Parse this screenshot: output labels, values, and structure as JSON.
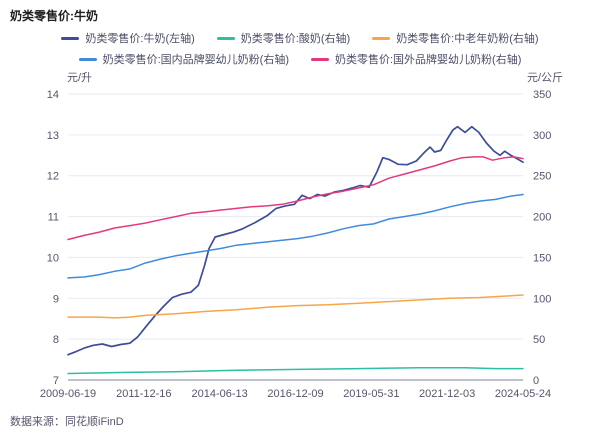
{
  "header": {
    "title": "奶类零售价:牛奶"
  },
  "footer": {
    "source": "数据来源：同花顺iFinD"
  },
  "colors": {
    "background": "#ffffff",
    "grid": "#e9eaf2",
    "axis_line": "#a9abbd",
    "tick_text": "#55566a",
    "legend_text": "#4b4d66",
    "title_text": "#1f1f1f"
  },
  "legend_rows": [
    [
      0,
      1,
      2
    ],
    [
      3,
      4
    ]
  ],
  "chart_data": {
    "type": "line",
    "title": "奶类零售价:牛奶",
    "grid": "horizontal-only",
    "legend_position": "top-center",
    "x_axis": {
      "kind": "date-decimal-year",
      "range": [
        2009.47,
        2024.4
      ],
      "tick_labels": [
        "2009-06-19",
        "2011-12-16",
        "2014-06-13",
        "2016-12-09",
        "2019-05-31",
        "2021-12-03",
        "2024-05-24"
      ]
    },
    "left_axis": {
      "unit": "元/升",
      "range": [
        7,
        14
      ],
      "ticks": [
        14,
        13,
        12,
        11,
        10,
        9,
        8,
        7
      ]
    },
    "right_axis": {
      "unit": "元/公斤",
      "range": [
        0,
        350
      ],
      "ticks": [
        350,
        300,
        250,
        200,
        150,
        100,
        50,
        0
      ]
    },
    "series": [
      {
        "key": "milk",
        "name": "奶类零售价:牛奶(左轴)",
        "axis": "left",
        "unit": "元/升",
        "color": "#3d4d9a",
        "points": [
          [
            2009.47,
            7.62
          ],
          [
            2009.75,
            7.7
          ],
          [
            2010.0,
            7.78
          ],
          [
            2010.3,
            7.85
          ],
          [
            2010.6,
            7.88
          ],
          [
            2010.9,
            7.82
          ],
          [
            2011.2,
            7.87
          ],
          [
            2011.5,
            7.9
          ],
          [
            2011.75,
            8.05
          ],
          [
            2012.0,
            8.28
          ],
          [
            2012.3,
            8.55
          ],
          [
            2012.6,
            8.8
          ],
          [
            2012.9,
            9.02
          ],
          [
            2013.2,
            9.1
          ],
          [
            2013.5,
            9.15
          ],
          [
            2013.75,
            9.32
          ],
          [
            2013.95,
            9.8
          ],
          [
            2014.1,
            10.22
          ],
          [
            2014.3,
            10.5
          ],
          [
            2014.6,
            10.56
          ],
          [
            2014.9,
            10.62
          ],
          [
            2015.2,
            10.7
          ],
          [
            2015.6,
            10.85
          ],
          [
            2016.0,
            11.02
          ],
          [
            2016.3,
            11.2
          ],
          [
            2016.6,
            11.26
          ],
          [
            2016.9,
            11.3
          ],
          [
            2017.15,
            11.52
          ],
          [
            2017.4,
            11.44
          ],
          [
            2017.65,
            11.54
          ],
          [
            2017.9,
            11.5
          ],
          [
            2018.2,
            11.6
          ],
          [
            2018.5,
            11.64
          ],
          [
            2018.8,
            11.7
          ],
          [
            2019.05,
            11.76
          ],
          [
            2019.35,
            11.72
          ],
          [
            2019.6,
            12.08
          ],
          [
            2019.8,
            12.44
          ],
          [
            2020.0,
            12.4
          ],
          [
            2020.3,
            12.28
          ],
          [
            2020.6,
            12.27
          ],
          [
            2020.9,
            12.36
          ],
          [
            2021.15,
            12.56
          ],
          [
            2021.35,
            12.7
          ],
          [
            2021.5,
            12.58
          ],
          [
            2021.7,
            12.62
          ],
          [
            2021.9,
            12.88
          ],
          [
            2022.1,
            13.12
          ],
          [
            2022.25,
            13.2
          ],
          [
            2022.5,
            13.06
          ],
          [
            2022.72,
            13.2
          ],
          [
            2022.95,
            13.06
          ],
          [
            2023.2,
            12.8
          ],
          [
            2023.45,
            12.6
          ],
          [
            2023.65,
            12.5
          ],
          [
            2023.8,
            12.6
          ],
          [
            2024.0,
            12.5
          ],
          [
            2024.2,
            12.42
          ],
          [
            2024.4,
            12.33
          ]
        ]
      },
      {
        "key": "yogurt",
        "name": "奶类零售价:酸奶(右轴)",
        "axis": "right",
        "unit": "元/公斤",
        "color": "#2cbfa4",
        "points": [
          [
            2009.47,
            8
          ],
          [
            2011.0,
            9
          ],
          [
            2013.0,
            10
          ],
          [
            2015.0,
            12
          ],
          [
            2017.0,
            13
          ],
          [
            2019.0,
            14
          ],
          [
            2021.0,
            15
          ],
          [
            2022.5,
            15
          ],
          [
            2023.5,
            14
          ],
          [
            2024.4,
            14
          ]
        ]
      },
      {
        "key": "senior-milk-powder",
        "name": "奶类零售价:中老年奶粉(右轴)",
        "axis": "right",
        "unit": "元/公斤",
        "color": "#f7a548",
        "points": [
          [
            2009.47,
            77
          ],
          [
            2010.0,
            77
          ],
          [
            2010.5,
            77
          ],
          [
            2011.0,
            76
          ],
          [
            2011.5,
            77
          ],
          [
            2012.0,
            79
          ],
          [
            2013.0,
            81
          ],
          [
            2014.0,
            84
          ],
          [
            2015.0,
            86
          ],
          [
            2016.0,
            89
          ],
          [
            2017.0,
            91
          ],
          [
            2018.0,
            92
          ],
          [
            2019.0,
            94
          ],
          [
            2020.0,
            96
          ],
          [
            2021.0,
            98
          ],
          [
            2022.0,
            100
          ],
          [
            2023.0,
            101
          ],
          [
            2024.0,
            103
          ],
          [
            2024.4,
            104
          ]
        ]
      },
      {
        "key": "domestic-infant-formula",
        "name": "奶类零售价:国内品牌婴幼儿奶粉(右轴)",
        "axis": "right",
        "unit": "元/公斤",
        "color": "#418bda",
        "points": [
          [
            2009.47,
            125
          ],
          [
            2010.0,
            126
          ],
          [
            2010.5,
            129
          ],
          [
            2011.0,
            133
          ],
          [
            2011.5,
            136
          ],
          [
            2012.0,
            143
          ],
          [
            2012.5,
            148
          ],
          [
            2013.0,
            152
          ],
          [
            2013.5,
            155
          ],
          [
            2014.0,
            158
          ],
          [
            2014.5,
            161
          ],
          [
            2015.0,
            165
          ],
          [
            2015.5,
            167
          ],
          [
            2016.0,
            169
          ],
          [
            2016.5,
            171
          ],
          [
            2017.0,
            173
          ],
          [
            2017.5,
            176
          ],
          [
            2018.0,
            180
          ],
          [
            2018.5,
            185
          ],
          [
            2019.0,
            189
          ],
          [
            2019.5,
            191
          ],
          [
            2020.0,
            197
          ],
          [
            2020.5,
            200
          ],
          [
            2021.0,
            203
          ],
          [
            2021.5,
            207
          ],
          [
            2022.0,
            212
          ],
          [
            2022.5,
            216
          ],
          [
            2023.0,
            219
          ],
          [
            2023.5,
            221
          ],
          [
            2024.0,
            225
          ],
          [
            2024.4,
            227
          ]
        ]
      },
      {
        "key": "foreign-infant-formula",
        "name": "奶类零售价:国外品牌婴幼儿奶粉(右轴)",
        "axis": "right",
        "unit": "元/公斤",
        "color": "#e5397e",
        "points": [
          [
            2009.47,
            172
          ],
          [
            2010.0,
            177
          ],
          [
            2010.5,
            181
          ],
          [
            2011.0,
            186
          ],
          [
            2011.5,
            189
          ],
          [
            2012.0,
            192
          ],
          [
            2012.5,
            196
          ],
          [
            2013.0,
            200
          ],
          [
            2013.5,
            204
          ],
          [
            2014.0,
            206
          ],
          [
            2014.5,
            208
          ],
          [
            2015.0,
            210
          ],
          [
            2015.5,
            212
          ],
          [
            2016.0,
            213
          ],
          [
            2016.5,
            215
          ],
          [
            2017.0,
            219
          ],
          [
            2017.5,
            224
          ],
          [
            2018.0,
            228
          ],
          [
            2018.5,
            231
          ],
          [
            2019.0,
            235
          ],
          [
            2019.5,
            239
          ],
          [
            2020.0,
            247
          ],
          [
            2020.5,
            252
          ],
          [
            2021.0,
            257
          ],
          [
            2021.5,
            262
          ],
          [
            2022.0,
            268
          ],
          [
            2022.4,
            272
          ],
          [
            2022.8,
            273
          ],
          [
            2023.1,
            273
          ],
          [
            2023.4,
            269
          ],
          [
            2023.8,
            272
          ],
          [
            2024.1,
            273
          ],
          [
            2024.4,
            271
          ]
        ]
      }
    ]
  }
}
